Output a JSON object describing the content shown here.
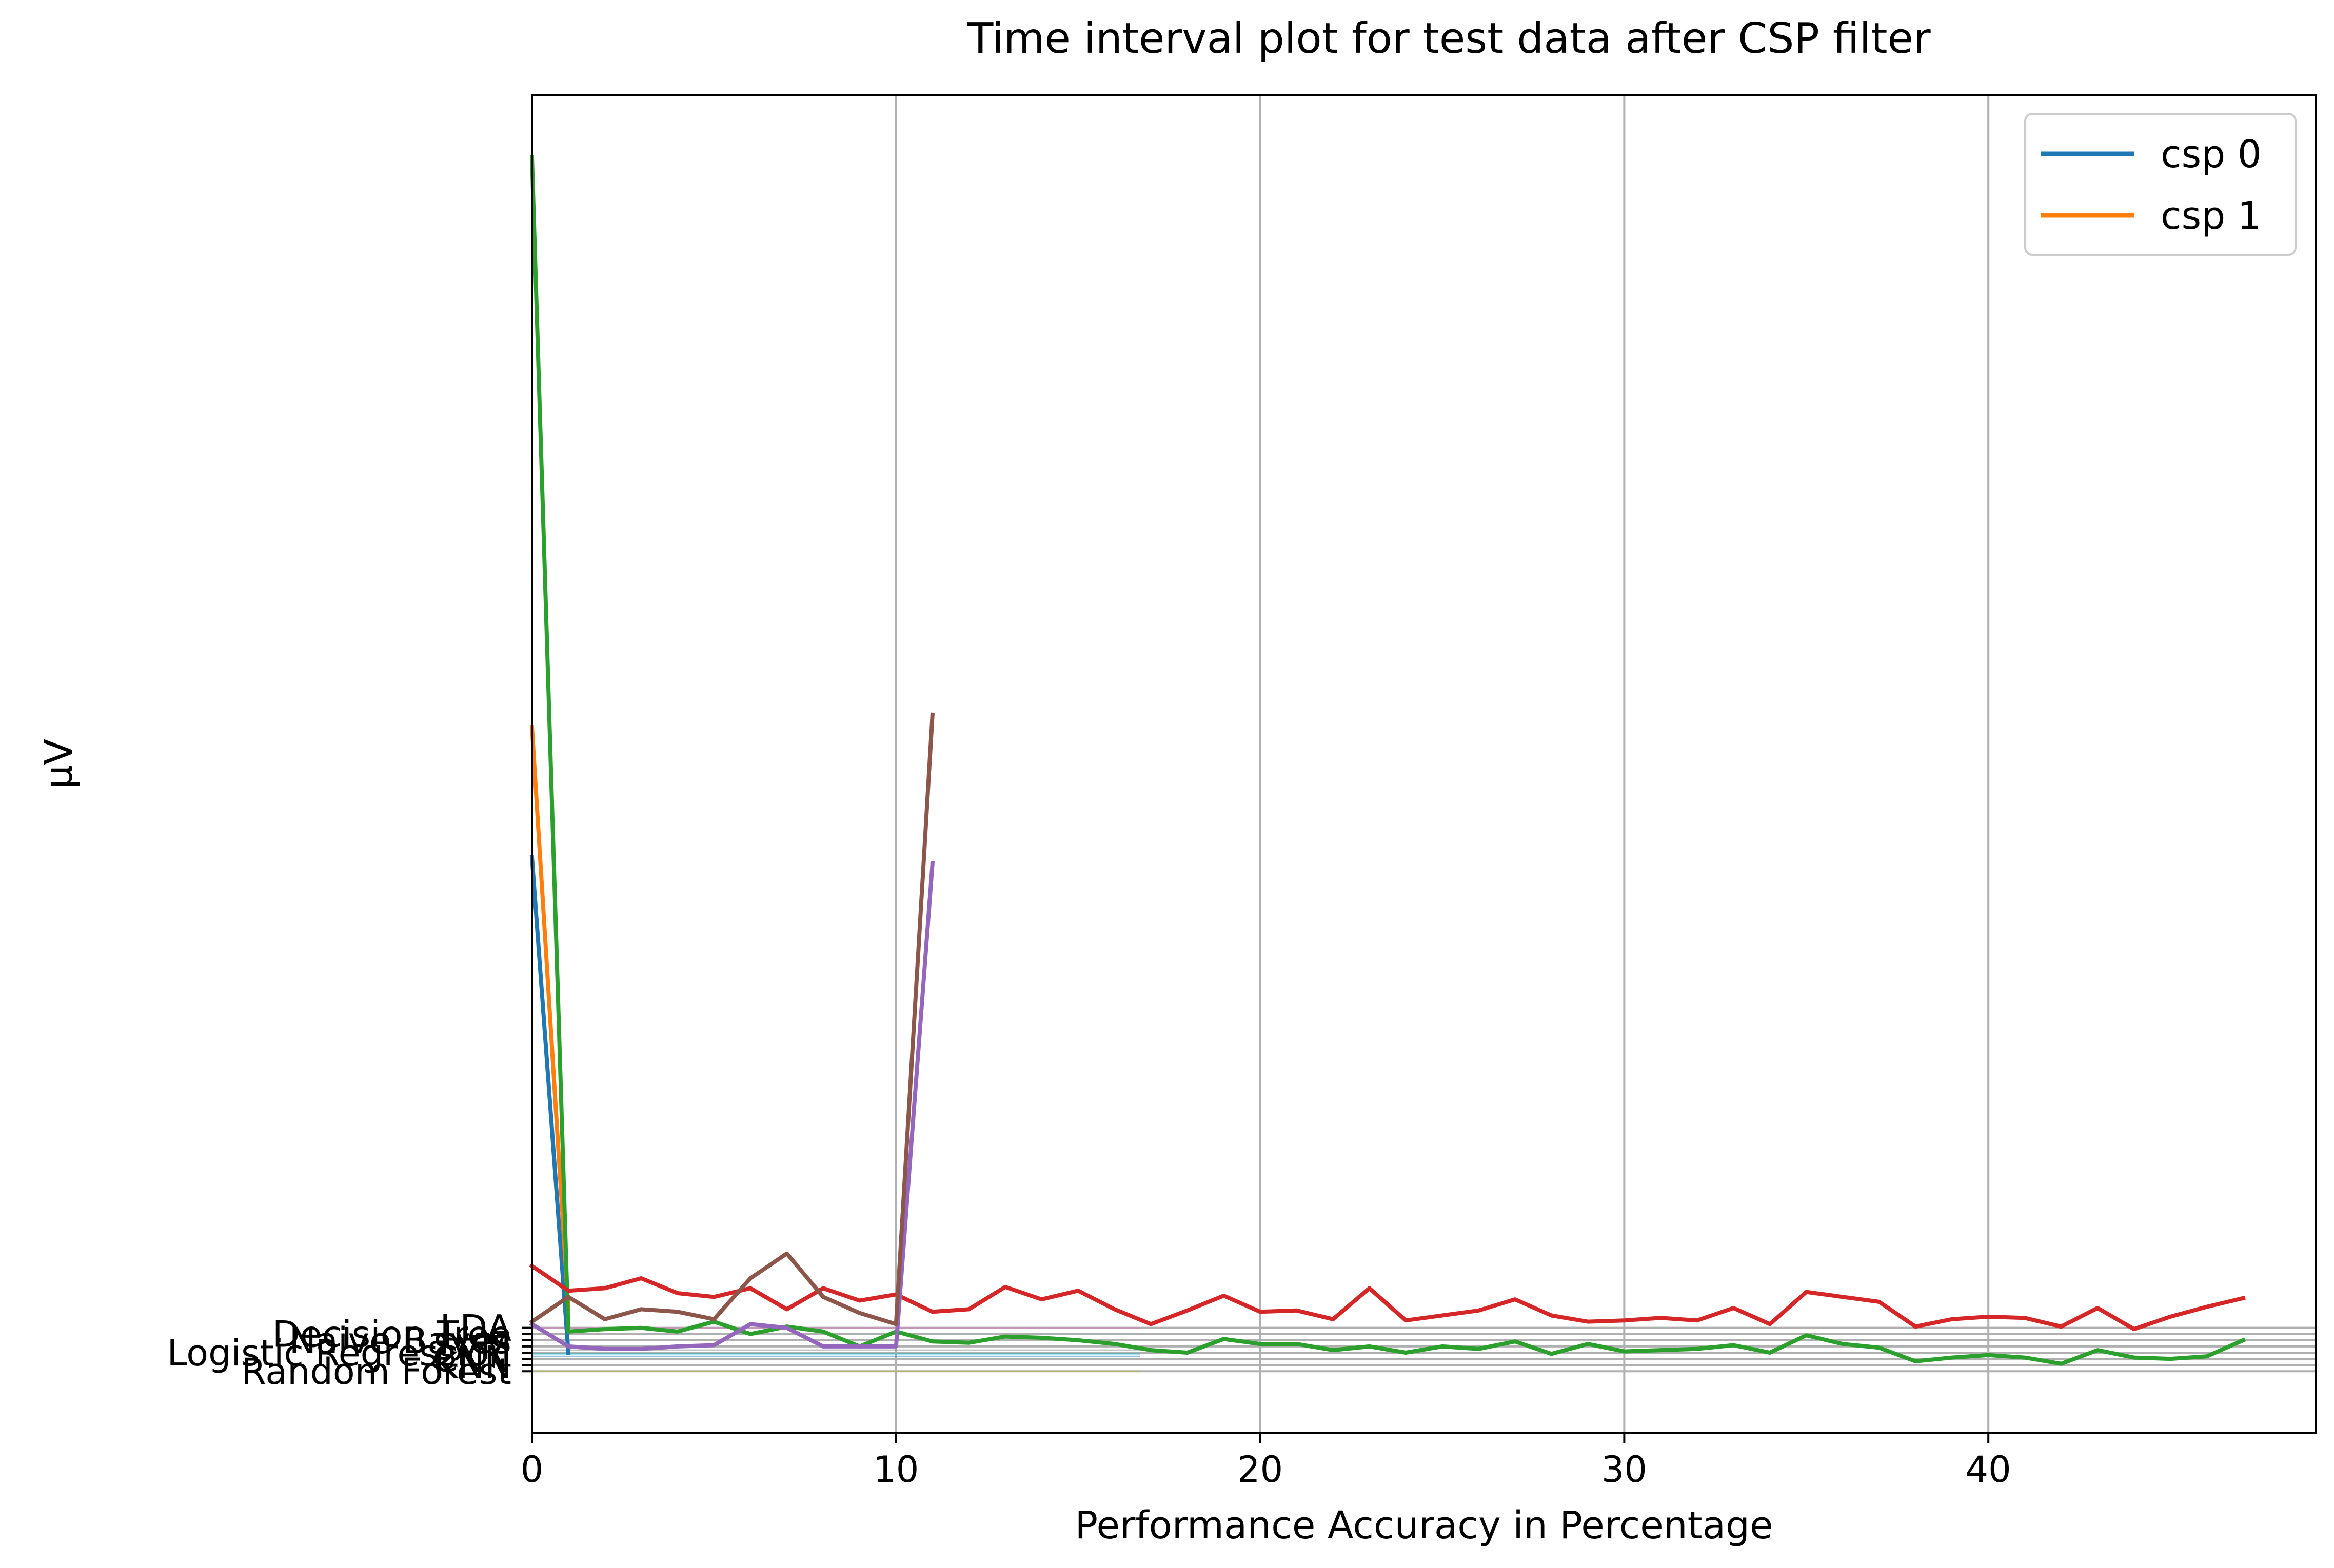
{
  "chart_data": {
    "type": "line",
    "title": "Time interval plot for test data after CSP filter",
    "xlabel": "Performance Accuracy in Percentage",
    "ylabel": "μV",
    "xlim": [
      0,
      49
    ],
    "x_ticks": [
      0,
      10,
      20,
      30,
      40
    ],
    "ylim": [
      -8,
      100
    ],
    "grid": "vertical and horizontal",
    "legend": {
      "location": "upper right",
      "entries": [
        {
          "label": "csp 0",
          "color": "#1f77b4"
        },
        {
          "label": "csp 1",
          "color": "#ff7f0e"
        }
      ]
    },
    "y_tick_labels": [
      {
        "label": "LDA",
        "y": 0.5
      },
      {
        "label": "Decision Tree",
        "y": 0.0
      },
      {
        "label": "Naive Bayes",
        "y": -0.5
      },
      {
        "label": "SVM",
        "y": -1.0
      },
      {
        "label": "Logistic Regression",
        "y": -1.5
      },
      {
        "label": "CNN",
        "y": -2.0
      },
      {
        "label": "KNN",
        "y": -2.5
      },
      {
        "label": "Random Forest",
        "y": -3.0
      }
    ],
    "series": [
      {
        "color": "#1f77b4",
        "x": [
          0,
          1
        ],
        "y": [
          38.5,
          -1.5
        ]
      },
      {
        "color": "#ff7f0e",
        "x": [
          0,
          1
        ],
        "y": [
          49,
          2
        ]
      },
      {
        "color": "#2ca02c",
        "x": [
          0,
          1,
          2,
          3,
          4,
          5,
          6,
          7,
          8,
          9,
          10,
          11,
          12,
          13,
          14,
          15,
          16,
          17,
          18,
          19,
          20,
          21,
          22,
          23,
          24,
          25,
          26,
          27,
          28,
          29,
          30,
          31,
          32,
          33,
          34,
          35,
          36,
          37,
          38,
          39,
          40,
          41,
          42,
          43,
          44,
          45,
          46,
          47
        ],
        "y": [
          95,
          0.2,
          0.4,
          0.5,
          0.2,
          1.0,
          0.0,
          0.6,
          0.2,
          -1.0,
          0.2,
          -0.6,
          -0.7,
          -0.2,
          -0.3,
          -0.5,
          -0.8,
          -1.3,
          -1.5,
          -0.4,
          -0.8,
          -0.8,
          -1.3,
          -1.0,
          -1.5,
          -1.0,
          -1.2,
          -0.6,
          -1.6,
          -0.8,
          -1.4,
          -1.3,
          -1.2,
          -0.9,
          -1.5,
          -0.1,
          -0.8,
          -1.1,
          -2.2,
          -1.9,
          -1.7,
          -1.9,
          -2.4,
          -1.3,
          -1.9,
          -2.0,
          -1.8,
          -0.5
        ]
      },
      {
        "color": "#d62728",
        "x": [
          0,
          1,
          2,
          3,
          4,
          5,
          6,
          7,
          8,
          9,
          10,
          11,
          12,
          13,
          14,
          15,
          16,
          17,
          18,
          19,
          20,
          21,
          22,
          23,
          24,
          25,
          26,
          27,
          28,
          29,
          30,
          31,
          32,
          33,
          34,
          35,
          36,
          37,
          38,
          39,
          40,
          41,
          42,
          43,
          44,
          45,
          46,
          47
        ],
        "y": [
          5.5,
          3.5,
          3.7,
          4.5,
          3.3,
          3.0,
          3.7,
          2.0,
          3.7,
          2.7,
          3.2,
          1.8,
          2.0,
          3.8,
          2.8,
          3.5,
          2.0,
          0.8,
          1.9,
          3.1,
          1.8,
          1.9,
          1.2,
          3.7,
          1.1,
          1.5,
          1.9,
          2.8,
          1.5,
          1.0,
          1.1,
          1.3,
          1.1,
          2.1,
          0.8,
          3.4,
          3.0,
          2.6,
          0.6,
          1.2,
          1.4,
          1.3,
          0.6,
          2.1,
          0.4,
          1.4,
          2.2,
          2.9
        ]
      },
      {
        "color": "#9467bd",
        "x": [
          0,
          1,
          2,
          3,
          4,
          5,
          6,
          7,
          8,
          9,
          10,
          11
        ],
        "y": [
          0.8,
          -1.0,
          -1.2,
          -1.2,
          -1.0,
          -0.9,
          0.8,
          0.5,
          -1.0,
          -1.0,
          -1.0,
          38.0
        ]
      },
      {
        "color": "#8c564b",
        "x": [
          0,
          1,
          2,
          3,
          4,
          5,
          6,
          7,
          8,
          9,
          10,
          11
        ],
        "y": [
          1.0,
          3.0,
          1.2,
          2.0,
          1.8,
          1.2,
          4.5,
          6.5,
          3.0,
          1.7,
          0.8,
          50.0
        ]
      }
    ],
    "reference_lines": [
      {
        "color": "#e377c2",
        "x": [
          0,
          16.7
        ],
        "y": 0.5
      },
      {
        "color": "#7f7f7f",
        "x": [
          0,
          16.7
        ],
        "y": -1.3
      },
      {
        "color": "#bcbd22",
        "x": [
          0,
          16.7
        ],
        "y": -3.0
      },
      {
        "color": "#17becf",
        "x": [
          0,
          16.7
        ],
        "y": -1.6
      },
      {
        "color": "#1f77b4",
        "x": [
          0,
          16.7
        ],
        "y": -1.8
      }
    ]
  }
}
